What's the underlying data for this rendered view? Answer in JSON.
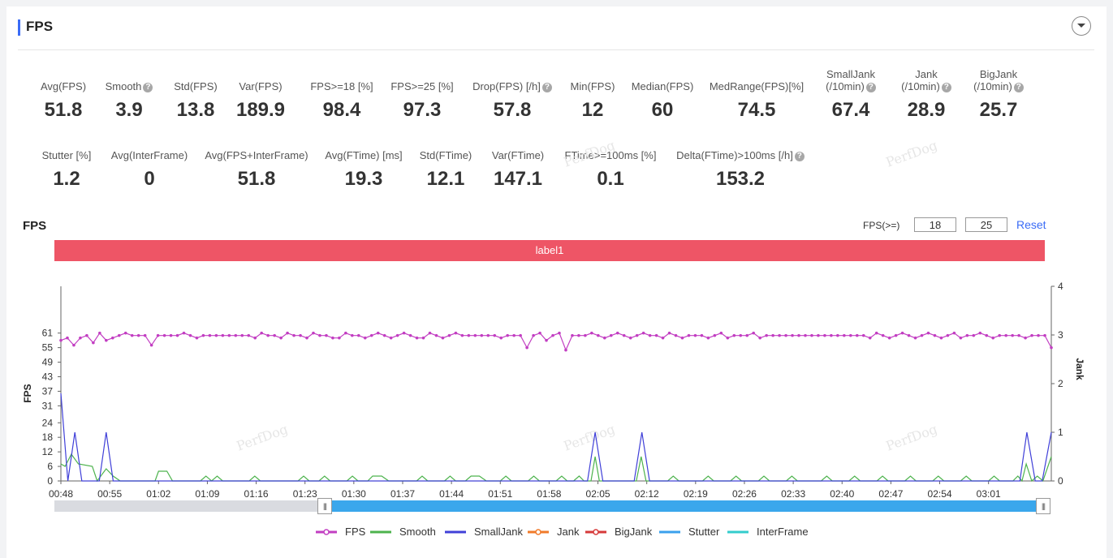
{
  "header": {
    "title": "FPS"
  },
  "metrics_row1": [
    {
      "label": "Avg(FPS)",
      "value": "51.8",
      "help": false
    },
    {
      "label": "Smooth",
      "value": "3.9",
      "help": true
    },
    {
      "label": "Std(FPS)",
      "value": "13.8",
      "help": false
    },
    {
      "label": "Var(FPS)",
      "value": "189.9",
      "help": false
    },
    {
      "label": "FPS>=18 [%]",
      "value": "98.4",
      "help": false
    },
    {
      "label": "FPS>=25 [%]",
      "value": "97.3",
      "help": false
    },
    {
      "label": "Drop(FPS) [/h]",
      "value": "57.8",
      "help": true
    },
    {
      "label": "Min(FPS)",
      "value": "12",
      "help": false
    },
    {
      "label": "Median(FPS)",
      "value": "60",
      "help": false
    },
    {
      "label": "MedRange(FPS)[%]",
      "value": "74.5",
      "help": false
    },
    {
      "label": "SmallJank",
      "label2": "(/10min)",
      "value": "67.4",
      "help": true
    },
    {
      "label": "Jank",
      "label2": "(/10min)",
      "value": "28.9",
      "help": true
    },
    {
      "label": "BigJank",
      "label2": "(/10min)",
      "value": "25.7",
      "help": true
    }
  ],
  "metrics_row2": [
    {
      "label": "Stutter [%]",
      "value": "1.2",
      "help": false
    },
    {
      "label": "Avg(InterFrame)",
      "value": "0",
      "help": false
    },
    {
      "label": "Avg(FPS+InterFrame)",
      "value": "51.8",
      "help": false
    },
    {
      "label": "Avg(FTime) [ms]",
      "value": "19.3",
      "help": false
    },
    {
      "label": "Std(FTime)",
      "value": "12.1",
      "help": false
    },
    {
      "label": "Var(FTime)",
      "value": "147.1",
      "help": false
    },
    {
      "label": "FTime>=100ms [%]",
      "value": "0.1",
      "help": false
    },
    {
      "label": "Delta(FTime)>100ms [/h]",
      "value": "153.2",
      "help": true
    }
  ],
  "watermark": "PerfDog",
  "chart_section": {
    "title": "FPS",
    "threshold_label": "FPS(>=)",
    "threshold1": "18",
    "threshold2": "25",
    "reset_label": "Reset",
    "label_bar": "label1"
  },
  "chart_data": {
    "type": "line",
    "ylabel": "FPS",
    "y2label": "Jank",
    "y_ticks": [
      0,
      6,
      12,
      18,
      24,
      31,
      37,
      43,
      49,
      55,
      61
    ],
    "y2_ticks": [
      0,
      1,
      2,
      3,
      4
    ],
    "x_ticks": [
      "00:48",
      "00:55",
      "01:02",
      "01:09",
      "01:16",
      "01:23",
      "01:30",
      "01:37",
      "01:44",
      "01:51",
      "01:58",
      "02:05",
      "02:12",
      "02:19",
      "02:26",
      "02:33",
      "02:40",
      "02:47",
      "02:54",
      "03:01"
    ],
    "x_start_seconds": 48,
    "x_end_seconds": 190,
    "series": [
      {
        "name": "FPS",
        "color": "#c23ec2",
        "axis": "left",
        "marker": true,
        "values": [
          58,
          59,
          56,
          59,
          60,
          57,
          61,
          58,
          59,
          60,
          61,
          60,
          60,
          60,
          56,
          60,
          60,
          60,
          60,
          61,
          60,
          59,
          60,
          60,
          60,
          60,
          60,
          60,
          60,
          60,
          59,
          61,
          60,
          60,
          59,
          61,
          60,
          60,
          59,
          61,
          60,
          60,
          59,
          59,
          61,
          60,
          60,
          59,
          60,
          61,
          60,
          59,
          60,
          61,
          60,
          59,
          59,
          61,
          60,
          59,
          60,
          61,
          60,
          60,
          60,
          60,
          60,
          60,
          59,
          60,
          60,
          60,
          55,
          60,
          61,
          58,
          60,
          61,
          54,
          60,
          60,
          60,
          61,
          60,
          59,
          60,
          61,
          60,
          59,
          60,
          61,
          60,
          60,
          59,
          61,
          60,
          59,
          60,
          60,
          60,
          59,
          60,
          61,
          59,
          60,
          60,
          60,
          61,
          59,
          60,
          60,
          60,
          60,
          60,
          60,
          60,
          60,
          60,
          60,
          60,
          60,
          60,
          60,
          60,
          60,
          59,
          61,
          60,
          59,
          60,
          61,
          60,
          59,
          60,
          61,
          60,
          59,
          60,
          61,
          59,
          60,
          60,
          61,
          60,
          59,
          60,
          60,
          60,
          60,
          59,
          60,
          60,
          60,
          55
        ]
      },
      {
        "name": "Smooth",
        "color": "#4db34d",
        "axis": "right",
        "marker": false,
        "points": [
          [
            48,
            0.35
          ],
          [
            48.6,
            0.3
          ],
          [
            49.5,
            0.55
          ],
          [
            50.5,
            0.35
          ],
          [
            52.5,
            0.3
          ],
          [
            53.2,
            0
          ],
          [
            54.5,
            0.25
          ],
          [
            55.5,
            0.1
          ],
          [
            56.5,
            0
          ],
          [
            61.5,
            0
          ],
          [
            62,
            0.2
          ],
          [
            63.2,
            0.2
          ],
          [
            64,
            0
          ],
          [
            68,
            0
          ],
          [
            68.8,
            0.1
          ],
          [
            69.6,
            0
          ],
          [
            70.4,
            0.1
          ],
          [
            71.2,
            0
          ],
          [
            75,
            0
          ],
          [
            75.8,
            0.1
          ],
          [
            76.6,
            0
          ],
          [
            82,
            0
          ],
          [
            82.8,
            0.1
          ],
          [
            83.6,
            0
          ],
          [
            85,
            0
          ],
          [
            85.8,
            0.1
          ],
          [
            86.6,
            0
          ],
          [
            89,
            0
          ],
          [
            89.8,
            0.1
          ],
          [
            90.6,
            0
          ],
          [
            92,
            0
          ],
          [
            92.7,
            0.1
          ],
          [
            94,
            0.1
          ],
          [
            95,
            0
          ],
          [
            99,
            0
          ],
          [
            99.8,
            0.1
          ],
          [
            100.6,
            0
          ],
          [
            103,
            0
          ],
          [
            103.8,
            0.1
          ],
          [
            104.6,
            0
          ],
          [
            106,
            0
          ],
          [
            106.8,
            0.1
          ],
          [
            108,
            0.1
          ],
          [
            109,
            0
          ],
          [
            111,
            0
          ],
          [
            111.8,
            0.1
          ],
          [
            112.6,
            0
          ],
          [
            115,
            0
          ],
          [
            115.8,
            0.1
          ],
          [
            116.6,
            0
          ],
          [
            119,
            0
          ],
          [
            119.8,
            0.1
          ],
          [
            120.6,
            0
          ],
          [
            121.5,
            0
          ],
          [
            122.3,
            0.1
          ],
          [
            123,
            0
          ],
          [
            124,
            0
          ],
          [
            124.6,
            0.5
          ],
          [
            125.2,
            0
          ],
          [
            130.5,
            0
          ],
          [
            131.2,
            0.5
          ],
          [
            131.9,
            0
          ],
          [
            135,
            0
          ],
          [
            135.8,
            0.1
          ],
          [
            136.6,
            0
          ],
          [
            140,
            0
          ],
          [
            140.8,
            0.1
          ],
          [
            141.6,
            0
          ],
          [
            144,
            0
          ],
          [
            144.8,
            0.1
          ],
          [
            145.6,
            0
          ],
          [
            148,
            0
          ],
          [
            148.8,
            0.1
          ],
          [
            149.6,
            0
          ],
          [
            152,
            0
          ],
          [
            152.8,
            0.1
          ],
          [
            153.6,
            0
          ],
          [
            157,
            0
          ],
          [
            157.8,
            0.1
          ],
          [
            158.6,
            0
          ],
          [
            161,
            0
          ],
          [
            161.8,
            0.1
          ],
          [
            162.6,
            0
          ],
          [
            165,
            0
          ],
          [
            165.8,
            0.1
          ],
          [
            166.6,
            0
          ],
          [
            169,
            0
          ],
          [
            169.8,
            0.1
          ],
          [
            170.6,
            0
          ],
          [
            173,
            0
          ],
          [
            173.8,
            0.1
          ],
          [
            174.6,
            0
          ],
          [
            177,
            0
          ],
          [
            177.8,
            0.1
          ],
          [
            178.6,
            0
          ],
          [
            181,
            0
          ],
          [
            181.8,
            0.1
          ],
          [
            182.6,
            0
          ],
          [
            184.5,
            0
          ],
          [
            185.2,
            0.1
          ],
          [
            185.8,
            0
          ],
          [
            186.4,
            0.35
          ],
          [
            187.2,
            0
          ],
          [
            188,
            0.1
          ],
          [
            188.8,
            0
          ],
          [
            190,
            0.5
          ]
        ]
      },
      {
        "name": "SmallJank",
        "color": "#4040d8",
        "axis": "right",
        "marker": false,
        "points": [
          [
            48,
            1.8
          ],
          [
            49,
            0
          ],
          [
            50,
            1
          ],
          [
            51,
            0
          ],
          [
            53.5,
            0
          ],
          [
            54.5,
            1
          ],
          [
            55.5,
            0
          ],
          [
            123.5,
            0
          ],
          [
            124.6,
            1
          ],
          [
            125.7,
            0
          ],
          [
            130.2,
            0
          ],
          [
            131.3,
            1
          ],
          [
            132.4,
            0
          ],
          [
            185.5,
            0
          ],
          [
            186.5,
            1
          ],
          [
            187.7,
            0
          ],
          [
            188.7,
            0
          ],
          [
            190,
            1
          ]
        ]
      },
      {
        "name": "Jank",
        "color": "#f07a2a",
        "axis": "right",
        "marker": true,
        "points": []
      },
      {
        "name": "BigJank",
        "color": "#d63a3a",
        "axis": "right",
        "marker": true,
        "points": []
      },
      {
        "name": "Stutter",
        "color": "#3aa0ec",
        "axis": "right",
        "marker": false,
        "points": []
      },
      {
        "name": "InterFrame",
        "color": "#33cccc",
        "axis": "right",
        "marker": false,
        "points": []
      }
    ]
  }
}
